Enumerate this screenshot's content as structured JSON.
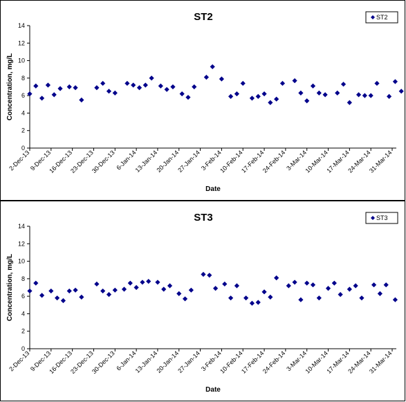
{
  "chart_data": [
    {
      "type": "scatter",
      "title": "ST2",
      "xlabel": "Date",
      "ylabel": "Concentration, mg/L",
      "ylim": [
        0,
        14
      ],
      "ytick_step": 2,
      "xlim": [
        "2013-12-02",
        "2014-03-31"
      ],
      "x_tick_labels": [
        "2-Dec-13",
        "9-Dec-13",
        "16-Dec-13",
        "23-Dec-13",
        "30-Dec-13",
        "6-Jan-14",
        "13-Jan-14",
        "20-Jan-14",
        "27-Jan-14",
        "3-Feb-14",
        "10-Feb-14",
        "17-Feb-14",
        "24-Feb-14",
        "3-Mar-14",
        "10-Mar-14",
        "17-Mar-14",
        "24-Mar-14",
        "31-Mar-14"
      ],
      "legend_placement": "top-right",
      "marker": "diamond",
      "color": "#00008B",
      "series": [
        {
          "name": "ST2",
          "points": [
            [
              "2013-12-02",
              6.2
            ],
            [
              "2013-12-04",
              7.1
            ],
            [
              "2013-12-06",
              5.7
            ],
            [
              "2013-12-08",
              7.2
            ],
            [
              "2013-12-10",
              6.1
            ],
            [
              "2013-12-12",
              6.8
            ],
            [
              "2013-12-15",
              7.0
            ],
            [
              "2013-12-17",
              6.9
            ],
            [
              "2013-12-19",
              5.5
            ],
            [
              "2013-12-24",
              6.9
            ],
            [
              "2013-12-26",
              7.4
            ],
            [
              "2013-12-28",
              6.5
            ],
            [
              "2013-12-30",
              6.3
            ],
            [
              "2014-01-03",
              7.4
            ],
            [
              "2014-01-05",
              7.2
            ],
            [
              "2014-01-07",
              6.9
            ],
            [
              "2014-01-09",
              7.2
            ],
            [
              "2014-01-11",
              8.0
            ],
            [
              "2014-01-14",
              7.1
            ],
            [
              "2014-01-16",
              6.7
            ],
            [
              "2014-01-18",
              7.0
            ],
            [
              "2014-01-21",
              6.2
            ],
            [
              "2014-01-23",
              5.8
            ],
            [
              "2014-01-25",
              7.0
            ],
            [
              "2014-01-29",
              8.1
            ],
            [
              "2014-01-31",
              9.3
            ],
            [
              "2014-02-03",
              7.9
            ],
            [
              "2014-02-06",
              5.9
            ],
            [
              "2014-02-08",
              6.2
            ],
            [
              "2014-02-10",
              7.4
            ],
            [
              "2014-02-13",
              5.7
            ],
            [
              "2014-02-15",
              5.9
            ],
            [
              "2014-02-17",
              6.2
            ],
            [
              "2014-02-19",
              5.2
            ],
            [
              "2014-02-21",
              5.6
            ],
            [
              "2014-02-23",
              7.4
            ],
            [
              "2014-02-27",
              7.7
            ],
            [
              "2014-03-01",
              6.3
            ],
            [
              "2014-03-03",
              5.4
            ],
            [
              "2014-03-05",
              7.1
            ],
            [
              "2014-03-07",
              6.3
            ],
            [
              "2014-03-09",
              6.1
            ],
            [
              "2014-03-13",
              6.3
            ],
            [
              "2014-03-15",
              7.3
            ],
            [
              "2014-03-17",
              5.2
            ],
            [
              "2014-03-20",
              6.1
            ],
            [
              "2014-03-22",
              6.0
            ],
            [
              "2014-03-24",
              6.0
            ],
            [
              "2014-03-26",
              7.4
            ],
            [
              "2014-03-30",
              5.9
            ],
            [
              "2014-04-01",
              7.6
            ],
            [
              "2014-04-03",
              6.5
            ]
          ]
        }
      ]
    },
    {
      "type": "scatter",
      "title": "ST3",
      "xlabel": "Date",
      "ylabel": "Concentration, mg/L",
      "ylim": [
        0,
        14
      ],
      "ytick_step": 2,
      "xlim": [
        "2013-12-02",
        "2014-03-31"
      ],
      "x_tick_labels": [
        "2-Dec-13",
        "9-Dec-13",
        "16-Dec-13",
        "23-Dec-13",
        "30-Dec-13",
        "6-Jan-14",
        "13-Jan-14",
        "20-Jan-14",
        "27-Jan-14",
        "3-Feb-14",
        "10-Feb-14",
        "17-Feb-14",
        "24-Feb-14",
        "3-Mar-14",
        "10-Mar-14",
        "17-Mar-14",
        "24-Mar-14",
        "31-Mar-14"
      ],
      "legend_placement": "top-right",
      "marker": "diamond",
      "color": "#00008B",
      "series": [
        {
          "name": "ST3",
          "points": [
            [
              "2013-12-02",
              6.6
            ],
            [
              "2013-12-04",
              7.5
            ],
            [
              "2013-12-06",
              6.1
            ],
            [
              "2013-12-09",
              6.6
            ],
            [
              "2013-12-11",
              5.8
            ],
            [
              "2013-12-13",
              5.5
            ],
            [
              "2013-12-15",
              6.6
            ],
            [
              "2013-12-17",
              6.7
            ],
            [
              "2013-12-19",
              5.9
            ],
            [
              "2013-12-24",
              7.4
            ],
            [
              "2013-12-26",
              6.6
            ],
            [
              "2013-12-28",
              6.2
            ],
            [
              "2013-12-30",
              6.7
            ],
            [
              "2014-01-02",
              6.8
            ],
            [
              "2014-01-04",
              7.5
            ],
            [
              "2014-01-06",
              7.0
            ],
            [
              "2014-01-08",
              7.6
            ],
            [
              "2014-01-10",
              7.7
            ],
            [
              "2014-01-13",
              7.6
            ],
            [
              "2014-01-15",
              6.8
            ],
            [
              "2014-01-17",
              7.2
            ],
            [
              "2014-01-20",
              6.3
            ],
            [
              "2014-01-22",
              5.7
            ],
            [
              "2014-01-24",
              6.7
            ],
            [
              "2014-01-28",
              8.5
            ],
            [
              "2014-01-30",
              8.4
            ],
            [
              "2014-02-01",
              6.9
            ],
            [
              "2014-02-04",
              7.4
            ],
            [
              "2014-02-06",
              5.8
            ],
            [
              "2014-02-08",
              7.2
            ],
            [
              "2014-02-11",
              5.8
            ],
            [
              "2014-02-13",
              5.2
            ],
            [
              "2014-02-15",
              5.3
            ],
            [
              "2014-02-17",
              6.5
            ],
            [
              "2014-02-19",
              5.9
            ],
            [
              "2014-02-21",
              8.1
            ],
            [
              "2014-02-25",
              7.2
            ],
            [
              "2014-02-27",
              7.6
            ],
            [
              "2014-03-01",
              5.6
            ],
            [
              "2014-03-03",
              7.5
            ],
            [
              "2014-03-05",
              7.3
            ],
            [
              "2014-03-07",
              5.8
            ],
            [
              "2014-03-10",
              6.9
            ],
            [
              "2014-03-12",
              7.5
            ],
            [
              "2014-03-14",
              6.2
            ],
            [
              "2014-03-17",
              6.8
            ],
            [
              "2014-03-19",
              7.2
            ],
            [
              "2014-03-21",
              5.8
            ],
            [
              "2014-03-25",
              7.3
            ],
            [
              "2014-03-27",
              6.3
            ],
            [
              "2014-03-29",
              7.3
            ],
            [
              "2014-04-01",
              5.6
            ]
          ]
        }
      ]
    }
  ]
}
